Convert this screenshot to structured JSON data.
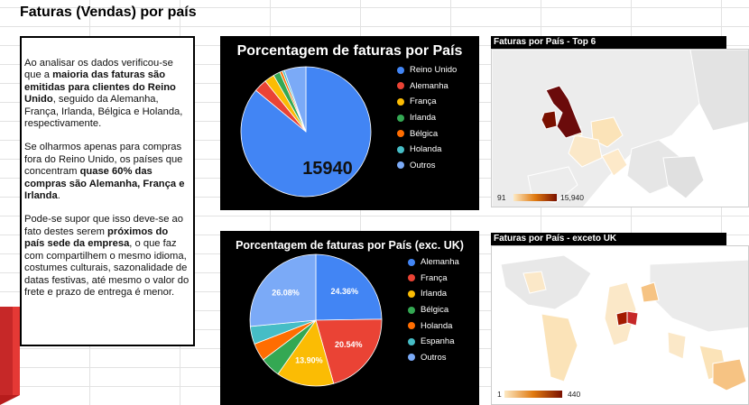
{
  "title": "Faturas (Vendas) por país",
  "text": {
    "p1": [
      {
        "t": "Ao analisar os dados verificou-se que a ",
        "b": false
      },
      {
        "t": "maioria das faturas são emitidas para clientes do Reino Unido",
        "b": true
      },
      {
        "t": ", seguido da Alemanha, França, Irlanda, Bélgica e Holanda, respectivamente.",
        "b": false
      }
    ],
    "p2": [
      {
        "t": "Se olharmos apenas para compras fora do Reino Unido, os países que concentram ",
        "b": false
      },
      {
        "t": "quase 60% das compras são Alemanha, França e Irlanda",
        "b": true
      },
      {
        "t": ".",
        "b": false
      }
    ],
    "p3": [
      {
        "t": "Pode-se supor que isso deve-se ao fato destes serem ",
        "b": false
      },
      {
        "t": "próximos do país sede da empresa",
        "b": true
      },
      {
        "t": ", o que faz com compartilhem o mesmo idioma, costumes culturais, sazonalidade de datas festivas, até mesmo o valor do frete e prazo de entrega é menor.",
        "b": false
      }
    ]
  },
  "chart_data": [
    {
      "type": "pie",
      "title": "Porcentagem de faturas por País",
      "labels": [
        "Reino Unido",
        "Alemanha",
        "França",
        "Irlanda",
        "Bélgica",
        "Holanda",
        "Outros"
      ],
      "values": [
        15940,
        603,
        458,
        319,
        119,
        101,
        997
      ],
      "colors": [
        "#4285f4",
        "#ea4335",
        "#fbbc04",
        "#34a853",
        "#ff6d01",
        "#46bdc6",
        "#7baaf7"
      ],
      "data_labels": [
        "15940",
        "",
        "",
        "",
        "",
        "",
        ""
      ]
    },
    {
      "type": "pie",
      "title": "Porcentagem de faturas por País (exc. UK)",
      "labels": [
        "Alemanha",
        "França",
        "Irlanda",
        "Bélgica",
        "Holanda",
        "Espanha",
        "Outros"
      ],
      "values": [
        24.36,
        20.54,
        13.9,
        4.9,
        4.3,
        4.3,
        26.08
      ],
      "colors": [
        "#4285f4",
        "#ea4335",
        "#fbbc04",
        "#34a853",
        "#ff6d01",
        "#46bdc6",
        "#7baaf7"
      ],
      "data_labels": [
        "24.36%",
        "20.54%",
        "13.90%",
        "",
        "",
        "",
        "26.08%"
      ]
    }
  ],
  "maps": [
    {
      "title": "Faturas por País - Top 6",
      "min_label": "91",
      "max_label": "15,940"
    },
    {
      "title": "Faturas por País - exceto UK",
      "min_label": "1",
      "max_label": "440"
    }
  ]
}
